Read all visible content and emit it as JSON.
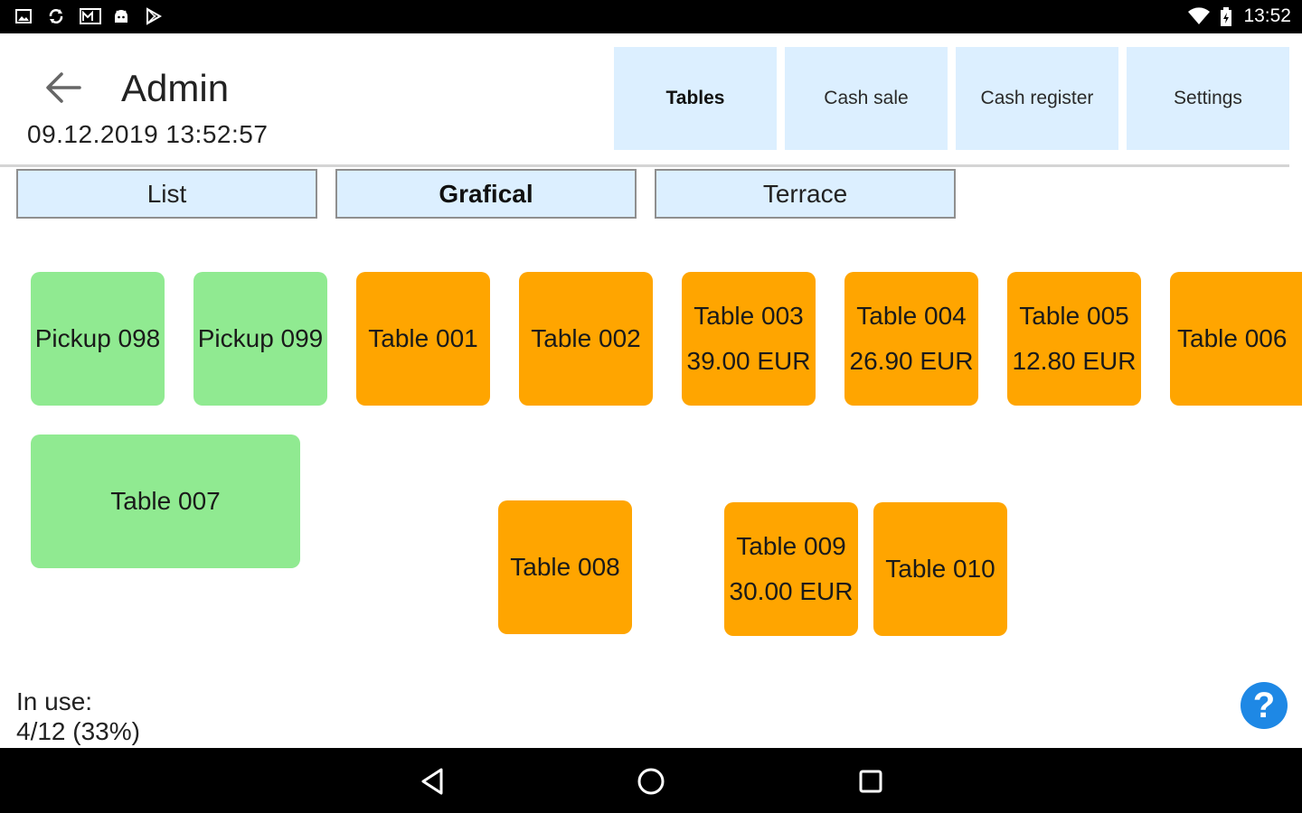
{
  "status_bar": {
    "time": "13:52"
  },
  "header": {
    "title": "Admin",
    "datetime": "09.12.2019 13:52:57",
    "nav_tabs": [
      {
        "label": "Tables",
        "active": true
      },
      {
        "label": "Cash sale",
        "active": false
      },
      {
        "label": "Cash register",
        "active": false
      },
      {
        "label": "Settings",
        "active": false
      }
    ]
  },
  "area_tabs": [
    {
      "label": "List",
      "active": false
    },
    {
      "label": "Grafical",
      "active": true
    },
    {
      "label": "Terrace",
      "active": false
    }
  ],
  "tables": [
    {
      "name": "Pickup 098",
      "amount": "",
      "status": "free"
    },
    {
      "name": "Pickup 099",
      "amount": "",
      "status": "free"
    },
    {
      "name": "Table 001",
      "amount": "",
      "status": "occupied"
    },
    {
      "name": "Table 002",
      "amount": "",
      "status": "occupied"
    },
    {
      "name": "Table 003",
      "amount": "39.00 EUR",
      "status": "occupied"
    },
    {
      "name": "Table 004",
      "amount": "26.90 EUR",
      "status": "occupied"
    },
    {
      "name": "Table 005",
      "amount": "12.80 EUR",
      "status": "occupied"
    },
    {
      "name": "Table 006",
      "amount": "",
      "status": "occupied"
    },
    {
      "name": "Table 007",
      "amount": "",
      "status": "free"
    },
    {
      "name": "Table 008",
      "amount": "",
      "status": "occupied"
    },
    {
      "name": "Table 009",
      "amount": "30.00 EUR",
      "status": "occupied"
    },
    {
      "name": "Table 010",
      "amount": "",
      "status": "occupied"
    }
  ],
  "footer": {
    "in_use_label": "In use:",
    "in_use_value": "4/12 (33%)",
    "help_label": "?"
  },
  "colors": {
    "free": "#90ea91",
    "occupied": "#ffa500",
    "tab_background": "#dcefff",
    "help": "#1e88e5"
  }
}
